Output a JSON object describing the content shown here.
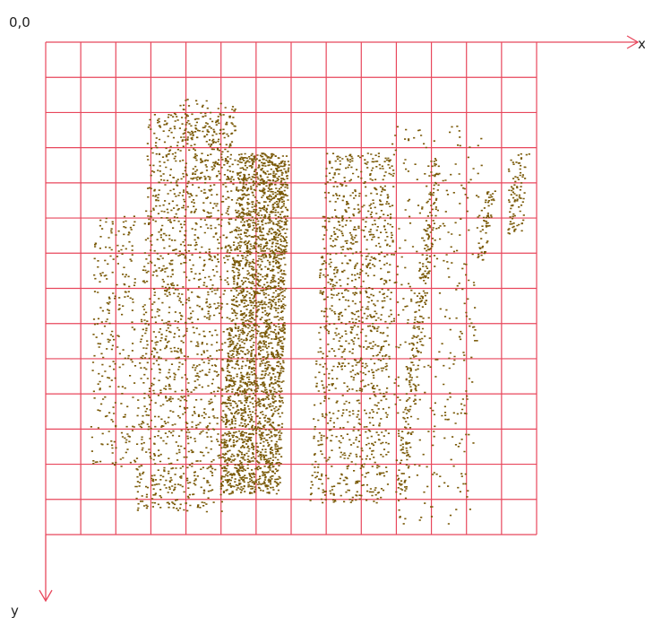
{
  "labels": {
    "origin": "0,0",
    "x_axis": "x",
    "y_axis": "y"
  }
}
